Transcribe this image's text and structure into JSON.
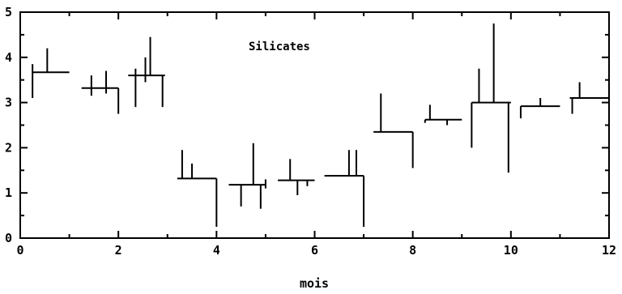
{
  "chart_data": {
    "type": "line",
    "title": "Silicates",
    "xlabel": "mois",
    "ylabel": "",
    "xlim": [
      0,
      12
    ],
    "ylim": [
      0,
      5
    ],
    "grid": false,
    "x_ticks": [
      "0",
      "2",
      "4",
      "6",
      "8",
      "10",
      "12"
    ],
    "y_ticks": [
      "0",
      "1",
      "2",
      "3",
      "4",
      "5"
    ],
    "steps": [
      {
        "x_start": 0.25,
        "x_end": 1.0,
        "value": 3.67
      },
      {
        "x_start": 1.25,
        "x_end": 2.0,
        "value": 3.32
      },
      {
        "x_start": 2.2,
        "x_end": 2.95,
        "value": 3.6
      },
      {
        "x_start": 3.2,
        "x_end": 4.0,
        "value": 1.32
      },
      {
        "x_start": 4.25,
        "x_end": 5.0,
        "value": 1.18
      },
      {
        "x_start": 5.25,
        "x_end": 6.0,
        "value": 1.28
      },
      {
        "x_start": 6.2,
        "x_end": 7.0,
        "value": 1.38
      },
      {
        "x_start": 7.2,
        "x_end": 8.0,
        "value": 2.35
      },
      {
        "x_start": 8.25,
        "x_end": 9.0,
        "value": 2.62
      },
      {
        "x_start": 9.2,
        "x_end": 10.0,
        "value": 3.0
      },
      {
        "x_start": 10.2,
        "x_end": 11.0,
        "value": 2.92
      },
      {
        "x_start": 11.2,
        "x_end": 12.0,
        "value": 3.1
      }
    ],
    "bars": [
      {
        "x": 0.25,
        "low": 3.1,
        "high": 3.85
      },
      {
        "x": 0.55,
        "low": 3.67,
        "high": 4.2
      },
      {
        "x": 1.0,
        "low": 3.67,
        "high": 3.67
      },
      {
        "x": 1.45,
        "low": 3.15,
        "high": 3.6
      },
      {
        "x": 1.75,
        "low": 3.2,
        "high": 3.7
      },
      {
        "x": 2.0,
        "low": 2.75,
        "high": 3.32
      },
      {
        "x": 2.35,
        "low": 2.9,
        "high": 3.75
      },
      {
        "x": 2.55,
        "low": 3.45,
        "high": 4.0
      },
      {
        "x": 2.65,
        "low": 3.6,
        "high": 4.45
      },
      {
        "x": 2.9,
        "low": 2.9,
        "high": 3.6
      },
      {
        "x": 3.3,
        "low": 1.32,
        "high": 1.95
      },
      {
        "x": 3.5,
        "low": 1.32,
        "high": 1.65
      },
      {
        "x": 4.0,
        "low": 0.25,
        "high": 1.32
      },
      {
        "x": 4.5,
        "low": 0.7,
        "high": 1.18
      },
      {
        "x": 4.75,
        "low": 1.18,
        "high": 2.1
      },
      {
        "x": 4.9,
        "low": 0.65,
        "high": 1.18
      },
      {
        "x": 5.0,
        "low": 1.1,
        "high": 1.3
      },
      {
        "x": 5.5,
        "low": 1.28,
        "high": 1.75
      },
      {
        "x": 5.65,
        "low": 0.95,
        "high": 1.28
      },
      {
        "x": 5.85,
        "low": 1.15,
        "high": 1.28
      },
      {
        "x": 6.7,
        "low": 1.38,
        "high": 1.95
      },
      {
        "x": 6.85,
        "low": 1.38,
        "high": 1.95
      },
      {
        "x": 7.0,
        "low": 0.25,
        "high": 1.38
      },
      {
        "x": 7.35,
        "low": 2.35,
        "high": 3.2
      },
      {
        "x": 8.0,
        "low": 1.55,
        "high": 2.35
      },
      {
        "x": 8.25,
        "low": 2.55,
        "high": 2.62
      },
      {
        "x": 8.35,
        "low": 2.62,
        "high": 2.95
      },
      {
        "x": 8.7,
        "low": 2.5,
        "high": 2.62
      },
      {
        "x": 9.2,
        "low": 2.0,
        "high": 3.0
      },
      {
        "x": 9.35,
        "low": 3.0,
        "high": 3.75
      },
      {
        "x": 9.65,
        "low": 3.0,
        "high": 4.75
      },
      {
        "x": 9.95,
        "low": 1.45,
        "high": 3.0
      },
      {
        "x": 10.2,
        "low": 2.65,
        "high": 2.92
      },
      {
        "x": 10.6,
        "low": 2.92,
        "high": 3.1
      },
      {
        "x": 11.25,
        "low": 2.75,
        "high": 3.1
      },
      {
        "x": 11.4,
        "low": 3.1,
        "high": 3.45
      }
    ]
  }
}
